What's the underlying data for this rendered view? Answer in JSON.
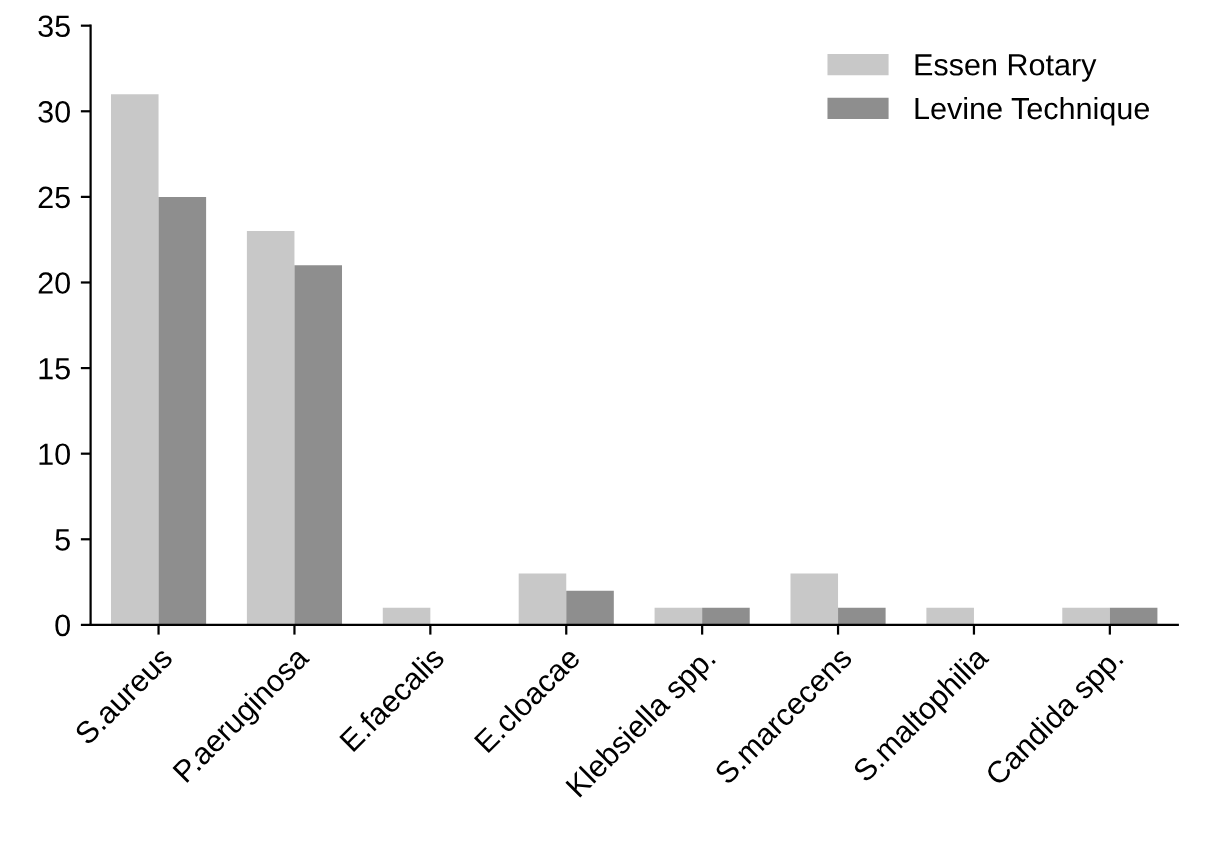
{
  "chart_data": {
    "type": "bar",
    "categories": [
      "S.aureus",
      "P.aeruginosa",
      "E.faecalis",
      "E.cloacae",
      "Klebsiella spp.",
      "S.marcecens",
      "S.maltophilia",
      "Candida spp."
    ],
    "series": [
      {
        "name": "Essen Rotary",
        "color": "#c8c8c8",
        "values": [
          31,
          23,
          1,
          3,
          1,
          3,
          1,
          1
        ]
      },
      {
        "name": "Levine Technique",
        "color": "#8e8e8e",
        "values": [
          25,
          21,
          0,
          2,
          1,
          1,
          0,
          1
        ]
      }
    ],
    "ylim": [
      0,
      35
    ],
    "yticks": [
      0,
      5,
      10,
      15,
      20,
      25,
      30,
      35
    ],
    "grid": false,
    "legend": "top right"
  }
}
